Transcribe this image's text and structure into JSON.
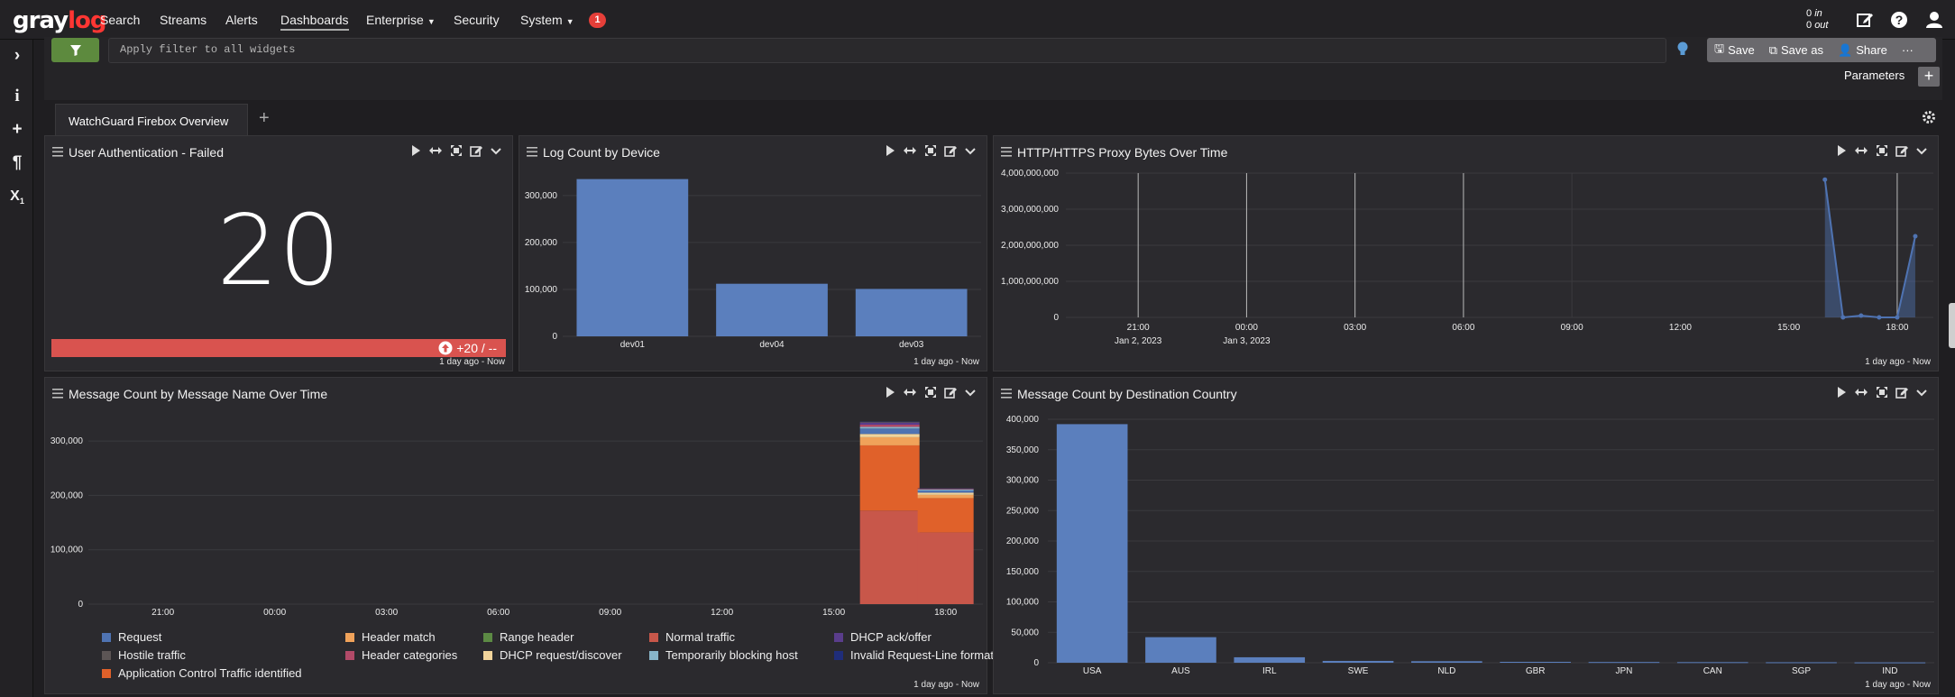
{
  "brand": {
    "part1": "gray",
    "part2": "log"
  },
  "nav": {
    "items": [
      "Search",
      "Streams",
      "Alerts",
      "Dashboards",
      "Enterprise",
      "Security",
      "System"
    ],
    "active": "Dashboards",
    "notification_count": "1",
    "throughput_in_value": "0",
    "throughput_in_label": "in",
    "throughput_out_value": "0",
    "throughput_out_label": "out"
  },
  "filter": {
    "placeholder": "Apply filter to all widgets"
  },
  "actions": {
    "save": "Save",
    "save_as": "Save as",
    "share": "Share",
    "more": "···"
  },
  "parameters": {
    "label": "Parameters",
    "add": "+"
  },
  "tabs": [
    {
      "label": "WatchGuard Firebox Overview"
    }
  ],
  "add_tab": "+",
  "widgets": {
    "auth": {
      "title": "User Authentication - Failed",
      "value": "20",
      "trend": "+20 / --",
      "footer": "1 day ago - Now",
      "accent": "#d9534f"
    },
    "logcount": {
      "title": "Log Count by Device",
      "footer": "1 day ago - Now"
    },
    "proxy": {
      "title": "HTTP/HTTPS Proxy Bytes Over Time",
      "footer": "1 day ago - Now"
    },
    "msgname": {
      "title": "Message Count by Message Name Over Time",
      "footer": "1 day ago - Now"
    },
    "country": {
      "title": "Message Count by Destination Country",
      "footer": "1 day ago - Now"
    }
  },
  "legend": [
    {
      "label": "Request",
      "color": "#4f73b2"
    },
    {
      "label": "Header match",
      "color": "#f0a25a"
    },
    {
      "label": "Range header",
      "color": "#5c8a44"
    },
    {
      "label": "Normal traffic",
      "color": "#c8574a"
    },
    {
      "label": "DHCP ack/offer",
      "color": "#5a3d8c"
    },
    {
      "label": "Hostile traffic",
      "color": "#5c5555"
    },
    {
      "label": "Header categories",
      "color": "#b24a68"
    },
    {
      "label": "DHCP request/discover",
      "color": "#f2d49b"
    },
    {
      "label": "Temporarily blocking host",
      "color": "#88b5c9"
    },
    {
      "label": "Invalid Request-Line format",
      "color": "#1f2d7a"
    },
    {
      "label": "Application Control Traffic identified",
      "color": "#e0612a"
    }
  ],
  "chart_data": [
    {
      "type": "bar",
      "title": "Log Count by Device",
      "categories": [
        "dev01",
        "dev04",
        "dev03"
      ],
      "values": [
        335000,
        112000,
        101000
      ],
      "ylim": [
        0,
        340000
      ],
      "yticks": [
        "0",
        "100,000",
        "200,000",
        "300,000"
      ],
      "color": "#5b7fbd",
      "grid": true
    },
    {
      "type": "line",
      "title": "HTTP/HTTPS Proxy Bytes Over Time",
      "xticks": [
        "21:00",
        "00:00",
        "03:00",
        "06:00",
        "09:00",
        "12:00",
        "15:00",
        "18:00"
      ],
      "xsub": [
        "Jan 2, 2023",
        "Jan 3, 2023"
      ],
      "yticks": [
        "0",
        "1,000,000,000",
        "2,000,000,000",
        "3,000,000,000",
        "4,000,000,000"
      ],
      "ylim": [
        0,
        4000000000
      ],
      "x": [
        "16:00",
        "16:30",
        "17:00",
        "17:30",
        "18:00",
        "18:30"
      ],
      "values": [
        3820000000,
        0,
        50000000,
        0,
        0,
        2250000000
      ],
      "color": "#4f73b2"
    },
    {
      "type": "bar",
      "title": "Message Count by Message Name Over Time",
      "stacked": true,
      "xticks": [
        "21:00",
        "00:00",
        "03:00",
        "06:00",
        "09:00",
        "12:00",
        "15:00",
        "18:00"
      ],
      "xsub": [
        "Jan 2, 2023",
        "Jan 3, 2023"
      ],
      "yticks": [
        "0",
        "100,000",
        "200,000",
        "300,000"
      ],
      "ylim": [
        0,
        340000
      ],
      "categories": [
        "16:30",
        "18:00"
      ],
      "series": [
        {
          "name": "Normal traffic",
          "values": [
            172000,
            132000
          ]
        },
        {
          "name": "Application Control Traffic identified",
          "values": [
            120000,
            63000
          ]
        },
        {
          "name": "Header match",
          "values": [
            15000,
            6000
          ]
        },
        {
          "name": "DHCP request/discover",
          "values": [
            6000,
            4000
          ]
        },
        {
          "name": "Request",
          "values": [
            10000,
            4000
          ]
        },
        {
          "name": "Temporarily blocking host",
          "values": [
            3000,
            2000
          ]
        },
        {
          "name": "Header categories",
          "values": [
            4000,
            1000
          ]
        },
        {
          "name": "DHCP ack/offer",
          "values": [
            4000,
            500
          ]
        },
        {
          "name": "Hostile traffic",
          "values": [
            1500,
            500
          ]
        },
        {
          "name": "Invalid Request-Line format",
          "values": [
            500,
            300
          ]
        }
      ]
    },
    {
      "type": "bar",
      "title": "Message Count by Destination Country",
      "categories": [
        "USA",
        "AUS",
        "IRL",
        "SWE",
        "NLD",
        "GBR",
        "JPN",
        "CAN",
        "SGP",
        "IND"
      ],
      "values": [
        392000,
        42000,
        9000,
        3000,
        2500,
        1500,
        1200,
        1000,
        800,
        600
      ],
      "ylim": [
        0,
        400000
      ],
      "yticks": [
        "0",
        "50,000",
        "100,000",
        "150,000",
        "200,000",
        "250,000",
        "300,000",
        "350,000",
        "400,000"
      ],
      "color": "#5b7fbd",
      "grid": true
    }
  ]
}
